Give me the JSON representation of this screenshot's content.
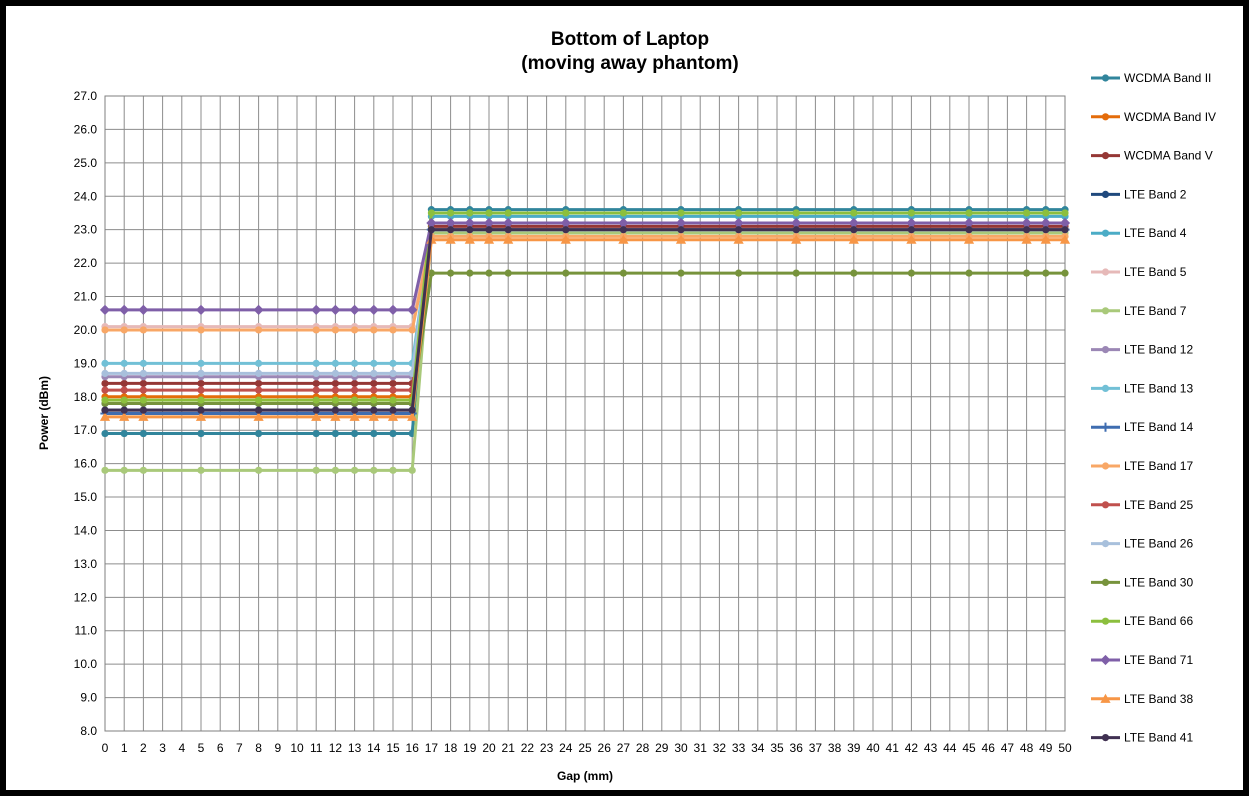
{
  "chart_data": {
    "type": "line",
    "title": "Bottom of Laptop",
    "subtitle": "(moving away phantom)",
    "xlabel": "Gap (mm)",
    "ylabel": "Power (dBm)",
    "xlim": [
      0,
      50
    ],
    "ylim": [
      8.0,
      27.0
    ],
    "y_ticks": [
      "8.0",
      "9.0",
      "10.0",
      "11.0",
      "12.0",
      "13.0",
      "14.0",
      "15.0",
      "16.0",
      "17.0",
      "18.0",
      "19.0",
      "20.0",
      "21.0",
      "22.0",
      "23.0",
      "24.0",
      "25.0",
      "26.0",
      "27.0"
    ],
    "x_ticks": [
      "0",
      "1",
      "2",
      "3",
      "4",
      "5",
      "6",
      "7",
      "8",
      "9",
      "10",
      "11",
      "12",
      "13",
      "14",
      "15",
      "16",
      "17",
      "18",
      "19",
      "20",
      "21",
      "22",
      "23",
      "24",
      "25",
      "26",
      "27",
      "28",
      "29",
      "30",
      "31",
      "32",
      "33",
      "34",
      "35",
      "36",
      "37",
      "38",
      "39",
      "40",
      "41",
      "42",
      "43",
      "44",
      "45",
      "46",
      "47",
      "48",
      "49",
      "50"
    ],
    "grid": true,
    "legend_position": "right",
    "x": [
      0,
      1,
      2,
      5,
      8,
      11,
      12,
      13,
      14,
      15,
      16,
      17,
      18,
      19,
      20,
      21,
      24,
      27,
      30,
      33,
      36,
      39,
      42,
      45,
      48,
      49,
      50
    ],
    "series": [
      {
        "name": "WCDMA Band II",
        "color": "#31859C",
        "marker": "circle",
        "low": 16.9,
        "high": 23.6
      },
      {
        "name": "WCDMA Band IV",
        "color": "#E46C0A",
        "marker": "circle",
        "low": 18.0,
        "high": 23.0
      },
      {
        "name": "WCDMA Band V",
        "color": "#953735",
        "marker": "circle",
        "low": 18.4,
        "high": 23.1
      },
      {
        "name": "LTE Band 2",
        "color": "#1F497D",
        "marker": "circle",
        "low": 17.6,
        "high": 23.0
      },
      {
        "name": "LTE Band 4",
        "color": "#4BACC6",
        "marker": "circle",
        "low": 17.8,
        "high": 23.4
      },
      {
        "name": "LTE Band 5",
        "color": "#E6B9B8",
        "marker": "circle",
        "low": 20.1,
        "high": 23.0
      },
      {
        "name": "LTE Band 7",
        "color": "#A9C97A",
        "marker": "circle",
        "low": 15.8,
        "high": 22.9
      },
      {
        "name": "LTE Band 12",
        "color": "#9B87B5",
        "marker": "circle",
        "low": 18.6,
        "high": 23.0
      },
      {
        "name": "LTE Band 13",
        "color": "#72C0D6",
        "marker": "circle",
        "low": 19.0,
        "high": 23.0
      },
      {
        "name": "LTE Band 14",
        "color": "#3F6DB0",
        "marker": "plus",
        "low": 17.5,
        "high": 23.0
      },
      {
        "name": "LTE Band 17",
        "color": "#F8A766",
        "marker": "circle",
        "low": 20.0,
        "high": 22.8
      },
      {
        "name": "LTE Band 25",
        "color": "#C0504D",
        "marker": "circle",
        "low": 18.2,
        "high": 23.2
      },
      {
        "name": "LTE Band 26",
        "color": "#A8C0DC",
        "marker": "circle",
        "low": 18.7,
        "high": 23.0
      },
      {
        "name": "LTE Band 30",
        "color": "#77933C",
        "marker": "circle",
        "low": 17.8,
        "high": 21.7
      },
      {
        "name": "LTE Band 66",
        "color": "#8CBF3E",
        "marker": "circle",
        "low": 17.9,
        "high": 23.5
      },
      {
        "name": "LTE Band 71",
        "color": "#7F5FA8",
        "marker": "diamond",
        "low": 20.6,
        "high": 23.2
      },
      {
        "name": "LTE Band 38",
        "color": "#F79646",
        "marker": "triangle",
        "low": 17.4,
        "high": 22.7
      },
      {
        "name": "LTE Band 41",
        "color": "#403152",
        "marker": "circle",
        "low": 17.6,
        "high": 23.0
      }
    ]
  }
}
